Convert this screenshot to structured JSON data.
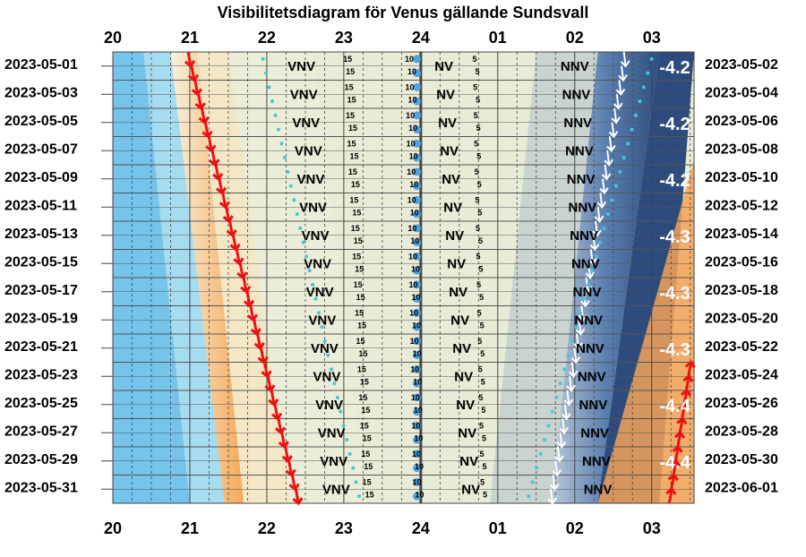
{
  "chart_data": {
    "type": "heatmap",
    "title": "Visibilitetsdiagram för Venus gällande Sundsvall",
    "x_ticks": [
      "20",
      "21",
      "22",
      "23",
      "24",
      "01",
      "02",
      "03"
    ],
    "x_range_hours": [
      20,
      27.55
    ],
    "left_dates": [
      "2023-05-01",
      "2023-05-03",
      "2023-05-05",
      "2023-05-07",
      "2023-05-09",
      "2023-05-11",
      "2023-05-13",
      "2023-05-15",
      "2023-05-17",
      "2023-05-19",
      "2023-05-21",
      "2023-05-23",
      "2023-05-25",
      "2023-05-27",
      "2023-05-29",
      "2023-05-31"
    ],
    "right_dates": [
      "2023-05-02",
      "2023-05-04",
      "2023-05-06",
      "2023-05-08",
      "2023-05-10",
      "2023-05-12",
      "2023-05-14",
      "2023-05-16",
      "2023-05-18",
      "2023-05-20",
      "2023-05-22",
      "2023-05-24",
      "2023-05-26",
      "2023-05-28",
      "2023-05-30",
      "2023-06-01"
    ],
    "sunset_hour": [
      21.0,
      22.4
    ],
    "sunrise_hour": [
      27.1,
      26.05
    ],
    "direction_labels": [
      {
        "text": "VNV",
        "hour": [
          22.45,
          22.9
        ]
      },
      {
        "text": "NV",
        "hour": [
          24.3,
          24.65
        ]
      },
      {
        "text": "NNV",
        "hour": [
          26.0,
          26.3
        ]
      }
    ],
    "altitude_labels": [
      {
        "text": "15",
        "hour": [
          23.05,
          23.3
        ]
      },
      {
        "text": "10",
        "hour": [
          23.85,
          23.95
        ]
      },
      {
        "text": "5",
        "hour": [
          24.7,
          24.8
        ]
      }
    ],
    "magnitude_labels": [
      "-4.2",
      "-4.2",
      "-4.2",
      "-4.3",
      "-4.3",
      "-4.3",
      "-4.4",
      "-4.4"
    ]
  }
}
